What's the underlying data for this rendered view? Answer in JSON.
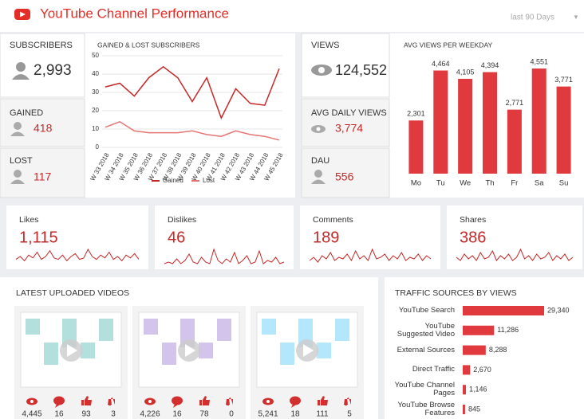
{
  "header": {
    "title": "YouTube Channel Performance",
    "period": "last 90 Days"
  },
  "kpis": {
    "subscribers": {
      "label": "SUBSCRIBERS",
      "value": "2,993"
    },
    "gained": {
      "label": "GAINED",
      "value": "418"
    },
    "lost": {
      "label": "LOST",
      "value": "117"
    },
    "views": {
      "label": "VIEWS",
      "value": "124,552"
    },
    "avg_daily_views": {
      "label": "AVG DAILY VIEWS",
      "value": "3,774"
    },
    "dau": {
      "label": "DAU",
      "value": "556"
    }
  },
  "chart_data": [
    {
      "type": "line",
      "title": "GAINED & LOST SUBSCRIBERS",
      "categories": [
        "W 33 2018",
        "W 34 2018",
        "W 35 2018",
        "W 36 2018",
        "W 37 2018",
        "W 38 2018",
        "W 39 2018",
        "W 40 2018",
        "W 41 2018",
        "W 42 2018",
        "W 43 2018",
        "W 44 2018",
        "W 45 2018"
      ],
      "series": [
        {
          "name": "Gained",
          "color": "#c62828",
          "values": [
            33,
            35,
            28,
            38,
            44,
            38,
            25,
            38,
            16,
            32,
            24,
            23,
            43
          ]
        },
        {
          "name": "Lost",
          "color": "#e57373",
          "values": [
            11,
            14,
            9,
            8,
            8,
            8,
            9,
            7,
            6,
            9,
            7,
            6,
            4
          ]
        }
      ],
      "ylim": [
        0,
        50
      ],
      "yticks": [
        0,
        10,
        20,
        30,
        40,
        50
      ],
      "grid": true,
      "legend": "bottom"
    },
    {
      "type": "bar",
      "title": "AVG VIEWS PER WEEKDAY",
      "color": "#e0393e",
      "categories": [
        "Mo",
        "Tu",
        "We",
        "Th",
        "Fr",
        "Sa",
        "Su"
      ],
      "values": [
        2301,
        4464,
        4105,
        4394,
        2771,
        4551,
        3771
      ],
      "value_labels": [
        "2,301",
        "4,464",
        "4,105",
        "4,394",
        "2,771",
        "4,551",
        "3,771"
      ]
    },
    {
      "type": "bar",
      "orientation": "horizontal",
      "title": "TRAFFIC SOURCES BY VIEWS",
      "color": "#e0393e",
      "categories": [
        "YouTube Search",
        "YouTube Suggested Video",
        "External Sources",
        "Direct Traffic",
        "YouTube Channel Pages",
        "YouTube Browse Features"
      ],
      "values": [
        29340,
        11286,
        8288,
        2670,
        1146,
        845
      ],
      "value_labels": [
        "29,340",
        "11,286",
        "8,288",
        "2,670",
        "1,146",
        "845"
      ]
    }
  ],
  "engagement": [
    {
      "label": "Likes",
      "value": "1,115",
      "color": "#c62828",
      "sparkline": [
        3,
        5,
        2,
        6,
        4,
        8,
        3,
        5,
        9,
        4,
        3,
        6,
        2,
        5,
        7,
        3,
        4,
        10,
        5,
        3,
        6,
        4,
        8,
        3,
        5,
        2,
        6,
        4,
        7,
        3
      ]
    },
    {
      "label": "Dislikes",
      "value": "46",
      "color": "#c62828",
      "sparkline": [
        0,
        1,
        0,
        3,
        0,
        2,
        6,
        1,
        0,
        4,
        1,
        0,
        9,
        2,
        0,
        3,
        1,
        7,
        0,
        2,
        5,
        0,
        1,
        8,
        0,
        2,
        1,
        4,
        0,
        1
      ]
    },
    {
      "label": "Comments",
      "value": "189",
      "color": "#c62828",
      "sparkline": [
        2,
        4,
        1,
        5,
        3,
        7,
        2,
        4,
        3,
        6,
        2,
        8,
        3,
        5,
        2,
        9,
        3,
        4,
        6,
        2,
        5,
        3,
        7,
        2,
        4,
        3,
        6,
        2,
        5,
        3
      ]
    },
    {
      "label": "Shares",
      "value": "386",
      "color": "#c62828",
      "sparkline": [
        4,
        2,
        6,
        3,
        5,
        2,
        7,
        3,
        4,
        8,
        2,
        5,
        3,
        6,
        2,
        4,
        9,
        3,
        5,
        2,
        6,
        3,
        4,
        7,
        2,
        5,
        3,
        6,
        2,
        4
      ]
    }
  ],
  "videos": {
    "title": "LATEST UPLOADED VIDEOS",
    "items": [
      {
        "views": "4,445",
        "comments": "16",
        "likes": "93",
        "dislikes": "3"
      },
      {
        "views": "4,226",
        "comments": "16",
        "likes": "78",
        "dislikes": "0"
      },
      {
        "views": "5,241",
        "comments": "18",
        "likes": "111",
        "dislikes": "5"
      }
    ]
  }
}
